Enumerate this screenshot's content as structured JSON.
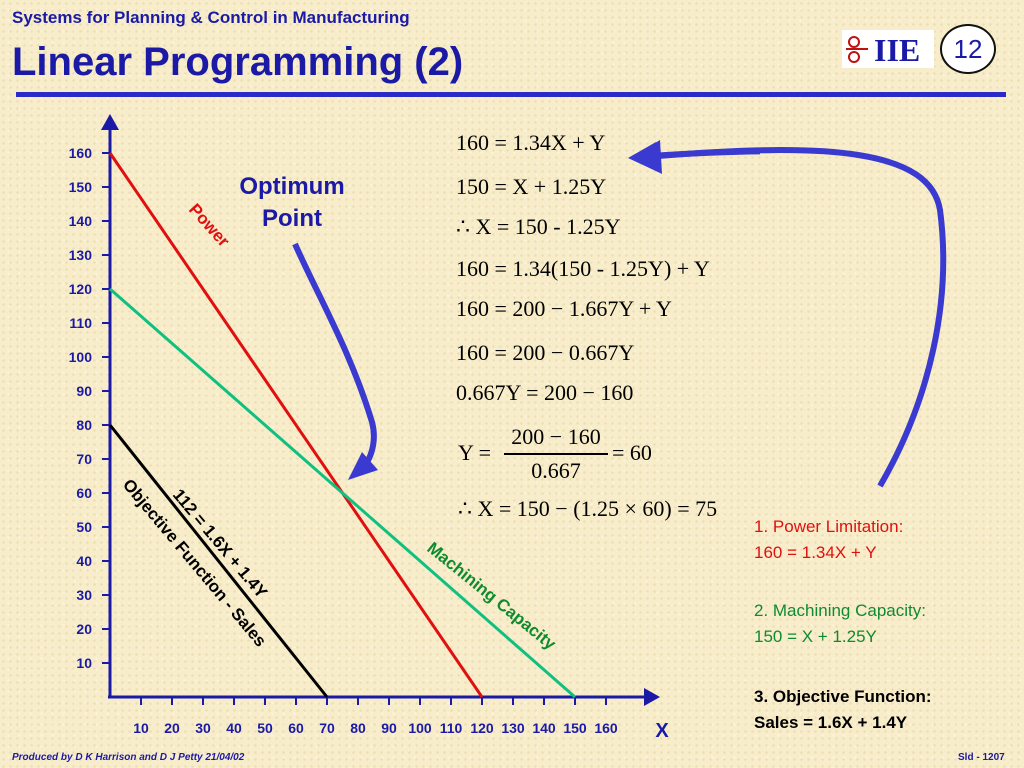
{
  "header": {
    "subtitle": "Systems for Planning & Control in Manufacturing",
    "title": "Linear Programming (2)",
    "slide_number": "12",
    "logo_text": "IIE",
    "accent": "#1a1aa6"
  },
  "chart_data": {
    "type": "line",
    "x_ticks": [
      "10",
      "20",
      "30",
      "40",
      "50",
      "60",
      "70",
      "80",
      "90",
      "100",
      "110",
      "120",
      "130",
      "140",
      "150",
      "160"
    ],
    "y_ticks": [
      "160",
      "150",
      "140",
      "130",
      "120",
      "110",
      "100",
      "90",
      "80",
      "70",
      "60",
      "50",
      "40",
      "30",
      "20",
      "10"
    ],
    "xlabel": "X",
    "series": [
      {
        "name": "Power",
        "x": [
          0,
          120
        ],
        "y": [
          160,
          0
        ],
        "color": "#e01010"
      },
      {
        "name": "Machining Capacity",
        "x": [
          0,
          150
        ],
        "y": [
          120,
          0
        ],
        "color": "#10c080"
      },
      {
        "name": "112 = 1.6X + 1.4Y",
        "x": [
          0,
          70
        ],
        "y": [
          80,
          0
        ],
        "color": "#000000"
      }
    ],
    "black_line_label_2": "Objective Function - Sales",
    "annotation": "Optimum Point",
    "optimum": {
      "x": 75,
      "y": 60
    }
  },
  "equations": [
    "160 = 1.34X + Y",
    "150 = X + 1.25Y",
    "∴ X = 150 - 1.25Y",
    "160 = 1.34(150 - 1.25Y) + Y",
    "160 = 200 − 1.667Y + Y",
    "160 = 200 − 0.667Y",
    "0.667Y = 200 − 160"
  ],
  "fraction": {
    "lhs": "Y =",
    "numerator": "200 − 160",
    "denominator": "0.667",
    "rhs": "= 60"
  },
  "final_equation": "∴ X = 150 − (1.25 × 60) = 75",
  "constraints": [
    {
      "title": "1.  Power Limitation:",
      "formula": "160 = 1.34X + Y",
      "color": "#e01010",
      "bold": false
    },
    {
      "title": "2.  Machining Capacity:",
      "formula": "150 = X + 1.25Y",
      "color": "#108a30",
      "bold": false
    },
    {
      "title": "3.  Objective Function:",
      "formula": "Sales = 1.6X + 1.4Y",
      "color": "#000000",
      "bold": true
    }
  ],
  "footer": {
    "credit": "Produced by D K Harrison and D J Petty 21/04/02",
    "slide": "Sld - 1207"
  }
}
